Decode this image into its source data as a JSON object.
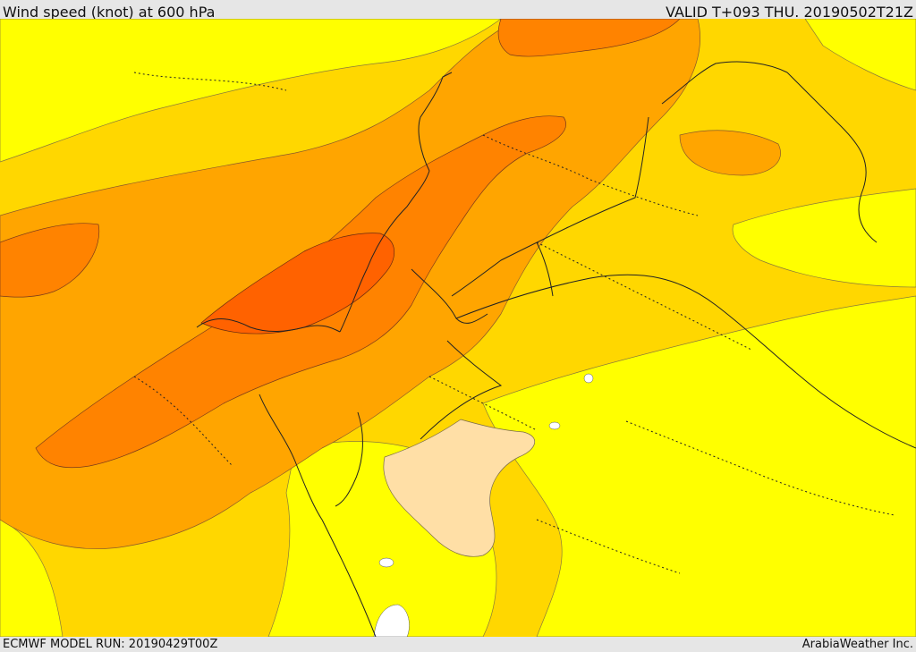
{
  "header": {
    "title": "Wind speed (knot) at 600 hPa",
    "valid": "VALID T+093 THU. 20190502T21Z"
  },
  "footer": {
    "model_run": "ECMWF MODEL RUN: 20190429T00Z",
    "credit": "ArabiaWeather Inc."
  },
  "map": {
    "colors": {
      "lowest": "#ffdfa6",
      "low": "#ffff00",
      "moderate": "#ffd700",
      "fresh": "#ffa500",
      "strong": "#ff8300",
      "strongest": "#ff6200",
      "white": "#ffffff"
    }
  }
}
